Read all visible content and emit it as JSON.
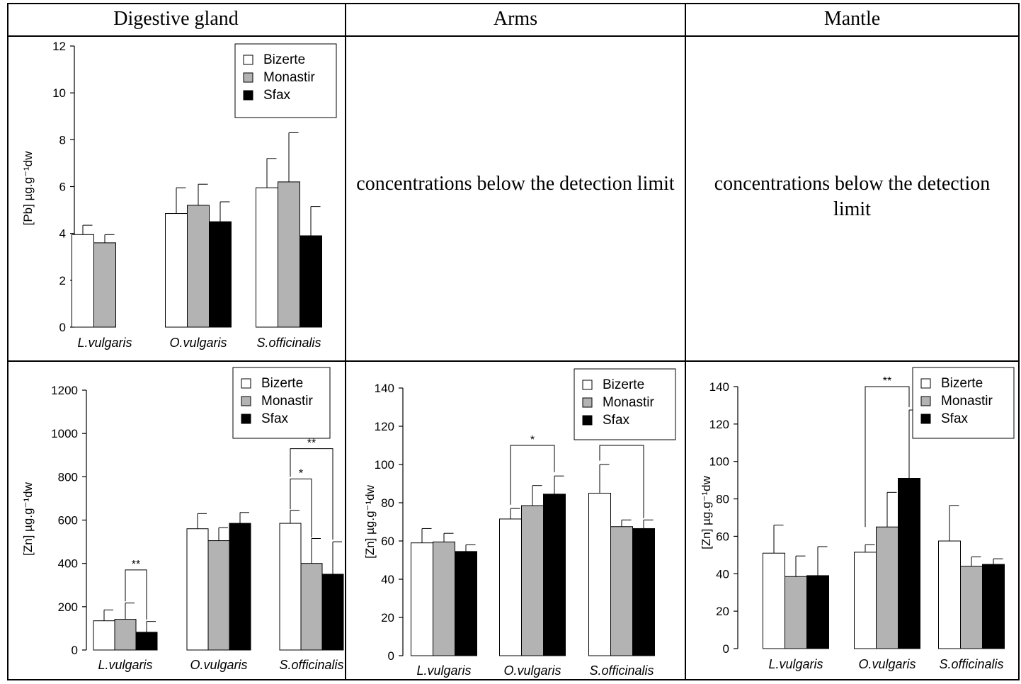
{
  "headers": [
    "Digestive gland",
    "Arms",
    "Mantle"
  ],
  "notes": {
    "arms_pb": "concentrations below the detection limit",
    "mantle_pb": "concentrations below the detection limit"
  },
  "legend": [
    {
      "name": "Bizerte",
      "color": "#ffffff"
    },
    {
      "name": "Monastir",
      "color": "#b3b3b3"
    },
    {
      "name": "Sfax",
      "color": "#000000"
    }
  ],
  "chart_data": [
    {
      "id": "pb-digestive",
      "type": "bar",
      "title": "",
      "ylabel": "[Pb] µg.g⁻¹dw",
      "categories": [
        "L.vulgaris",
        "O.vulgaris",
        "S.officinalis"
      ],
      "ylim": [
        0,
        12
      ],
      "yticks": [
        0,
        2,
        4,
        6,
        8,
        10,
        12
      ],
      "series": [
        {
          "name": "Bizerte",
          "values": [
            3.95,
            4.85,
            5.95
          ],
          "errors": [
            0.4,
            1.1,
            1.25
          ]
        },
        {
          "name": "Monastir",
          "values": [
            3.6,
            5.2,
            6.2
          ],
          "errors": [
            0.35,
            0.9,
            2.1
          ]
        },
        {
          "name": "Sfax",
          "values": [
            null,
            4.5,
            3.9
          ],
          "errors": [
            null,
            0.85,
            1.25
          ]
        }
      ],
      "annotations": []
    },
    {
      "id": "zn-digestive",
      "type": "bar",
      "title": "",
      "ylabel": "[Zn] µg.g⁻¹dw",
      "categories": [
        "L.vulgaris",
        "O.vulgaris",
        "S.officinalis"
      ],
      "ylim": [
        0,
        1200
      ],
      "yticks": [
        0,
        200,
        400,
        600,
        800,
        1000,
        1200
      ],
      "series": [
        {
          "name": "Bizerte",
          "values": [
            135,
            560,
            585
          ],
          "errors": [
            50,
            70,
            60
          ]
        },
        {
          "name": "Monastir",
          "values": [
            142,
            505,
            400
          ],
          "errors": [
            75,
            60,
            115
          ]
        },
        {
          "name": "Sfax",
          "values": [
            82,
            585,
            350
          ],
          "errors": [
            50,
            50,
            150
          ]
        }
      ],
      "annotations": [
        {
          "label": "**",
          "cat": 0,
          "from": 1,
          "to": 2,
          "level": 370,
          "endA": 225,
          "endB": 140
        },
        {
          "label": "*",
          "cat": 2,
          "from": 0,
          "to": 1,
          "level": 790,
          "endA": 650,
          "endB": 520
        },
        {
          "label": "**",
          "cat": 2,
          "from": 0,
          "to": 2,
          "level": 930,
          "endA": 800,
          "endB": 510
        }
      ]
    },
    {
      "id": "zn-arms",
      "type": "bar",
      "title": "",
      "ylabel": "[Zn] µg.g⁻¹dw",
      "categories": [
        "L.vulgaris",
        "O.vulgaris",
        "S.officinalis"
      ],
      "ylim": [
        0,
        140
      ],
      "yticks": [
        0,
        20,
        40,
        60,
        80,
        100,
        120,
        140
      ],
      "series": [
        {
          "name": "Bizerte",
          "values": [
            59,
            71.5,
            85
          ],
          "errors": [
            7.5,
            5.5,
            15
          ]
        },
        {
          "name": "Monastir",
          "values": [
            59.5,
            78.5,
            67.5
          ],
          "errors": [
            4.5,
            10.5,
            3.5
          ]
        },
        {
          "name": "Sfax",
          "values": [
            54.5,
            84.5,
            66.5
          ],
          "errors": [
            3.5,
            9.5,
            4.5
          ]
        }
      ],
      "annotations": [
        {
          "label": "*",
          "cat": 1,
          "from": 0,
          "to": 2,
          "level": 110,
          "endA": 79,
          "endB": 96
        },
        {
          "label": "*",
          "cat": 2,
          "from": 0,
          "to": 2,
          "level": 110,
          "endA": 102,
          "endB": 72
        }
      ]
    },
    {
      "id": "zn-mantle",
      "type": "bar",
      "title": "",
      "ylabel": "[Zn] µg.g⁻¹dw",
      "categories": [
        "L.vulgaris",
        "O.vulgaris",
        "S.officinalis"
      ],
      "ylim": [
        0,
        140
      ],
      "yticks": [
        0,
        20,
        40,
        60,
        80,
        100,
        120,
        140
      ],
      "series": [
        {
          "name": "Bizerte",
          "values": [
            51,
            51.5,
            57.5
          ],
          "errors": [
            15,
            4,
            19
          ]
        },
        {
          "name": "Monastir",
          "values": [
            38.5,
            65,
            44
          ],
          "errors": [
            11,
            18.5,
            5
          ]
        },
        {
          "name": "Sfax",
          "values": [
            39,
            91,
            45
          ],
          "errors": [
            15.5,
            36.5,
            3
          ]
        }
      ],
      "annotations": [
        {
          "label": "**",
          "cat": 1,
          "from": 0,
          "to": 2,
          "level": 140,
          "endA": 65,
          "endB": 129
        }
      ]
    }
  ]
}
